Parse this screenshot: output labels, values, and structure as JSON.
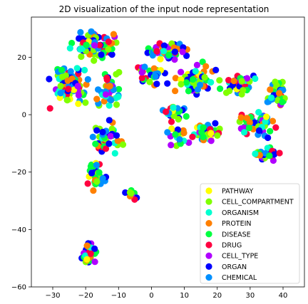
{
  "chart_data": {
    "type": "scatter",
    "title": "2D visualization of the input node representation",
    "xlabel": "",
    "ylabel": "",
    "xlim": [
      -36.5,
      46.5
    ],
    "ylim": [
      -60,
      34
    ],
    "x_ticks": [
      -30,
      -20,
      -10,
      0,
      10,
      20,
      30,
      40
    ],
    "y_ticks": [
      -60,
      -40,
      -20,
      0,
      20
    ],
    "grid": false,
    "legend_position": "lower-right",
    "series": [
      {
        "name": "PATHWAY",
        "color": "#ffff00"
      },
      {
        "name": "CELL_COMPARTMENT",
        "color": "#80ff00"
      },
      {
        "name": "ORGANISM",
        "color": "#00ffd0"
      },
      {
        "name": "PROTEIN",
        "color": "#ff8000"
      },
      {
        "name": "DISEASE",
        "color": "#00ff40"
      },
      {
        "name": "DRUG",
        "color": "#ff0040"
      },
      {
        "name": "CELL_TYPE",
        "color": "#b000ff"
      },
      {
        "name": "ORGAN",
        "color": "#0000ff"
      },
      {
        "name": "CHEMICAL",
        "color": "#0090ff"
      }
    ],
    "clusters": [
      {
        "cx": -25,
        "cy": 10,
        "rx": 7,
        "ry": 9,
        "n": 75
      },
      {
        "cx": -17,
        "cy": 24,
        "rx": 9,
        "ry": 6,
        "n": 70
      },
      {
        "cx": -13,
        "cy": 8,
        "rx": 6,
        "ry": 8,
        "n": 40
      },
      {
        "cx": -14,
        "cy": -8,
        "rx": 6,
        "ry": 7,
        "n": 45
      },
      {
        "cx": -17,
        "cy": -22,
        "rx": 4,
        "ry": 7,
        "n": 35
      },
      {
        "cx": -19,
        "cy": -48,
        "rx": 3,
        "ry": 5,
        "n": 40
      },
      {
        "cx": 5,
        "cy": 22,
        "rx": 9,
        "ry": 4,
        "n": 50
      },
      {
        "cx": 0,
        "cy": 14,
        "rx": 6,
        "ry": 5,
        "n": 30
      },
      {
        "cx": 14,
        "cy": 12,
        "rx": 8,
        "ry": 7,
        "n": 55
      },
      {
        "cx": 26,
        "cy": 11,
        "rx": 7,
        "ry": 5,
        "n": 45
      },
      {
        "cx": 38,
        "cy": 7,
        "rx": 4,
        "ry": 7,
        "n": 40
      },
      {
        "cx": 32,
        "cy": -3,
        "rx": 7,
        "ry": 6,
        "n": 60
      },
      {
        "cx": 35,
        "cy": -14,
        "rx": 5,
        "ry": 4,
        "n": 35
      },
      {
        "cx": 16,
        "cy": -6,
        "rx": 6,
        "ry": 5,
        "n": 40
      },
      {
        "cx": 8,
        "cy": -8,
        "rx": 4,
        "ry": 5,
        "n": 20
      },
      {
        "cx": -6,
        "cy": -27,
        "rx": 3,
        "ry": 3,
        "n": 10
      },
      {
        "cx": 7,
        "cy": 1,
        "rx": 5,
        "ry": 4,
        "n": 25
      }
    ],
    "seed": 7
  }
}
